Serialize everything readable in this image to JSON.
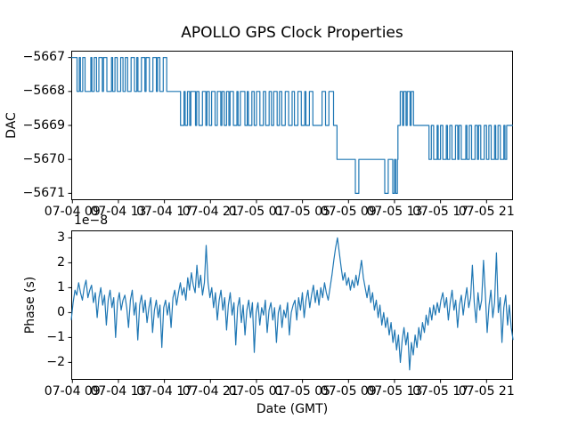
{
  "figure": {
    "title": "APOLLO GPS Clock Properties",
    "background": "#ffffff",
    "line_color": "#1f77b4",
    "axis_color": "#000000"
  },
  "axis_x": {
    "label": "Date (GMT)",
    "xlim_hours": [
      8.9,
      47.3
    ],
    "tick_values_hours": [
      9,
      13,
      17,
      21,
      25,
      29,
      33,
      37,
      41,
      45
    ],
    "tick_labels": [
      "07-04 09",
      "07-04 13",
      "07-04 17",
      "07-04 21",
      "07-05 01",
      "07-05 05",
      "07-05 09",
      "07-05 13",
      "07-05 17",
      "07-05 21"
    ]
  },
  "chart_data": [
    {
      "type": "line",
      "name": "dac",
      "ylabel": "DAC",
      "style": "step-post",
      "grid": false,
      "legend": "none",
      "ylim": [
        -5671.2,
        -5666.8
      ],
      "yticks": [
        -5667,
        -5668,
        -5669,
        -5670,
        -5671
      ],
      "points": [
        [
          8.9,
          -5667
        ],
        [
          9.4,
          -5668
        ],
        [
          9.6,
          -5667
        ],
        [
          9.7,
          -5668
        ],
        [
          9.9,
          -5667
        ],
        [
          10.1,
          -5668
        ],
        [
          10.6,
          -5667
        ],
        [
          10.7,
          -5668
        ],
        [
          10.9,
          -5667
        ],
        [
          11.1,
          -5668
        ],
        [
          11.3,
          -5667
        ],
        [
          11.6,
          -5668
        ],
        [
          11.7,
          -5667
        ],
        [
          12.0,
          -5668
        ],
        [
          12.4,
          -5667
        ],
        [
          12.5,
          -5668
        ],
        [
          12.7,
          -5667
        ],
        [
          12.9,
          -5668
        ],
        [
          13.2,
          -5667
        ],
        [
          13.4,
          -5668
        ],
        [
          13.6,
          -5667
        ],
        [
          13.8,
          -5668
        ],
        [
          14.1,
          -5667
        ],
        [
          14.4,
          -5668
        ],
        [
          14.6,
          -5667
        ],
        [
          14.7,
          -5668
        ],
        [
          15.0,
          -5667
        ],
        [
          15.3,
          -5668
        ],
        [
          15.4,
          -5667
        ],
        [
          15.7,
          -5668
        ],
        [
          16.0,
          -5667
        ],
        [
          16.3,
          -5668
        ],
        [
          16.4,
          -5667
        ],
        [
          16.6,
          -5668
        ],
        [
          16.9,
          -5667
        ],
        [
          17.2,
          -5668
        ],
        [
          18.4,
          -5669
        ],
        [
          18.7,
          -5668
        ],
        [
          18.8,
          -5669
        ],
        [
          19.0,
          -5668
        ],
        [
          19.2,
          -5669
        ],
        [
          19.3,
          -5668
        ],
        [
          19.7,
          -5669
        ],
        [
          19.8,
          -5668
        ],
        [
          20.0,
          -5669
        ],
        [
          20.3,
          -5668
        ],
        [
          20.6,
          -5669
        ],
        [
          20.7,
          -5668
        ],
        [
          20.9,
          -5669
        ],
        [
          21.1,
          -5668
        ],
        [
          21.4,
          -5669
        ],
        [
          21.6,
          -5668
        ],
        [
          21.9,
          -5669
        ],
        [
          22.0,
          -5668
        ],
        [
          22.2,
          -5669
        ],
        [
          22.4,
          -5668
        ],
        [
          22.6,
          -5669
        ],
        [
          22.7,
          -5668
        ],
        [
          23.0,
          -5669
        ],
        [
          23.3,
          -5668
        ],
        [
          23.4,
          -5669
        ],
        [
          23.6,
          -5668
        ],
        [
          24.0,
          -5669
        ],
        [
          24.2,
          -5668
        ],
        [
          24.3,
          -5669
        ],
        [
          24.6,
          -5668
        ],
        [
          24.8,
          -5669
        ],
        [
          25.0,
          -5668
        ],
        [
          25.3,
          -5669
        ],
        [
          25.6,
          -5668
        ],
        [
          25.8,
          -5669
        ],
        [
          26.1,
          -5668
        ],
        [
          26.3,
          -5669
        ],
        [
          26.5,
          -5668
        ],
        [
          26.8,
          -5669
        ],
        [
          27.0,
          -5668
        ],
        [
          27.2,
          -5669
        ],
        [
          27.5,
          -5668
        ],
        [
          27.8,
          -5669
        ],
        [
          28.1,
          -5668
        ],
        [
          28.3,
          -5669
        ],
        [
          28.6,
          -5668
        ],
        [
          28.9,
          -5669
        ],
        [
          29.2,
          -5668
        ],
        [
          29.3,
          -5669
        ],
        [
          29.6,
          -5668
        ],
        [
          29.9,
          -5669
        ],
        [
          30.7,
          -5668
        ],
        [
          31.0,
          -5669
        ],
        [
          31.3,
          -5668
        ],
        [
          31.7,
          -5669
        ],
        [
          32.0,
          -5670
        ],
        [
          33.6,
          -5671
        ],
        [
          33.9,
          -5670
        ],
        [
          36.15,
          -5671
        ],
        [
          36.45,
          -5670
        ],
        [
          36.85,
          -5671
        ],
        [
          37.0,
          -5670
        ],
        [
          37.1,
          -5671
        ],
        [
          37.25,
          -5670
        ],
        [
          37.3,
          -5669
        ],
        [
          37.5,
          -5668
        ],
        [
          37.7,
          -5669
        ],
        [
          37.8,
          -5668
        ],
        [
          38.0,
          -5669
        ],
        [
          38.1,
          -5668
        ],
        [
          38.35,
          -5669
        ],
        [
          38.45,
          -5668
        ],
        [
          38.65,
          -5669
        ],
        [
          40.0,
          -5670
        ],
        [
          40.2,
          -5669
        ],
        [
          40.4,
          -5670
        ],
        [
          40.7,
          -5669
        ],
        [
          40.8,
          -5670
        ],
        [
          41.0,
          -5669
        ],
        [
          41.2,
          -5670
        ],
        [
          41.5,
          -5669
        ],
        [
          41.6,
          -5670
        ],
        [
          41.8,
          -5669
        ],
        [
          42.0,
          -5670
        ],
        [
          42.3,
          -5669
        ],
        [
          42.5,
          -5670
        ],
        [
          42.6,
          -5669
        ],
        [
          42.8,
          -5670
        ],
        [
          43.2,
          -5669
        ],
        [
          43.3,
          -5670
        ],
        [
          43.5,
          -5669
        ],
        [
          43.7,
          -5670
        ],
        [
          44.0,
          -5669
        ],
        [
          44.2,
          -5670
        ],
        [
          44.3,
          -5669
        ],
        [
          44.5,
          -5670
        ],
        [
          44.8,
          -5669
        ],
        [
          45.0,
          -5670
        ],
        [
          45.2,
          -5669
        ],
        [
          45.4,
          -5670
        ],
        [
          45.7,
          -5669
        ],
        [
          45.8,
          -5670
        ],
        [
          46.0,
          -5669
        ],
        [
          46.2,
          -5670
        ],
        [
          46.5,
          -5669
        ],
        [
          46.6,
          -5670
        ],
        [
          46.75,
          -5669
        ],
        [
          47.3,
          -5669
        ]
      ]
    },
    {
      "type": "line",
      "name": "phase",
      "ylabel": "Phase (s)",
      "offset_text": "1e−8",
      "grid": false,
      "legend": "none",
      "ylim": [
        -2.7,
        3.3
      ],
      "yticks": [
        3,
        2,
        1,
        0,
        -1,
        -2
      ],
      "x_start_hours": 8.9,
      "x_step_hours": 0.1607,
      "values_1e8": [
        -0.3,
        0.4,
        0.9,
        0.7,
        1.2,
        0.8,
        0.5,
        1.0,
        1.3,
        0.6,
        0.9,
        1.1,
        0.4,
        0.8,
        -0.2,
        0.6,
        1.0,
        0.3,
        0.7,
        -0.5,
        0.5,
        0.9,
        0.2,
        0.6,
        -1.0,
        0.4,
        0.8,
        0.1,
        0.5,
        0.7,
        0.2,
        -0.6,
        0.5,
        0.9,
        -0.1,
        0.4,
        -1.1,
        0.3,
        0.7,
        0.0,
        0.5,
        -0.4,
        0.2,
        0.6,
        -0.8,
        0.1,
        0.5,
        -0.2,
        0.3,
        -1.4,
        0.2,
        0.5,
        -0.1,
        0.4,
        -0.6,
        0.6,
        0.9,
        0.3,
        0.8,
        1.2,
        0.7,
        1.0,
        0.5,
        1.4,
        0.9,
        1.6,
        1.1,
        0.8,
        1.9,
        1.0,
        1.5,
        0.7,
        1.2,
        2.7,
        1.2,
        0.6,
        1.0,
        0.2,
        0.8,
        -0.3,
        0.5,
        0.9,
        0.1,
        0.6,
        -0.7,
        0.3,
        0.8,
        -0.1,
        0.4,
        -1.3,
        0.2,
        0.6,
        -0.4,
        0.3,
        -0.9,
        0.1,
        0.5,
        -0.2,
        0.4,
        -1.6,
        0.0,
        0.4,
        -0.5,
        0.2,
        -0.1,
        0.5,
        -0.8,
        0.1,
        0.4,
        -0.3,
        0.2,
        -1.2,
        0.0,
        0.3,
        -0.6,
        0.1,
        -0.2,
        0.4,
        -0.9,
        0.0,
        0.3,
        0.5,
        -0.3,
        0.6,
        0.1,
        0.8,
        -0.2,
        0.5,
        0.9,
        0.2,
        0.7,
        1.1,
        0.4,
        0.9,
        0.3,
        1.0,
        0.6,
        1.2,
        0.8,
        0.5,
        1.0,
        1.5,
        2.1,
        2.6,
        3.0,
        2.4,
        1.8,
        1.3,
        1.6,
        1.1,
        1.4,
        0.9,
        1.3,
        1.0,
        1.5,
        1.1,
        1.6,
        2.1,
        1.4,
        1.0,
        0.6,
        1.1,
        0.4,
        0.8,
        0.1,
        0.5,
        -0.2,
        0.3,
        -0.5,
        0.0,
        -0.6,
        -0.2,
        -0.9,
        -0.4,
        -1.2,
        -0.7,
        -1.5,
        -0.9,
        -2.0,
        -1.1,
        -0.6,
        -1.3,
        -0.8,
        -2.3,
        -1.2,
        -1.7,
        -0.9,
        -1.4,
        -0.6,
        -1.1,
        -0.4,
        -0.8,
        -0.1,
        -0.5,
        0.2,
        -0.3,
        0.3,
        -0.1,
        0.4,
        0.0,
        0.5,
        0.8,
        0.2,
        0.6,
        -0.3,
        0.4,
        0.9,
        0.1,
        0.5,
        -0.6,
        0.3,
        0.7,
        -0.1,
        0.5,
        1.0,
        0.2,
        0.6,
        1.9,
        0.4,
        -0.4,
        0.8,
        0.1,
        0.5,
        2.1,
        0.7,
        -0.8,
        0.3,
        0.9,
        -0.2,
        0.4,
        2.4,
        0.0,
        0.6,
        -1.2,
        0.2,
        0.7,
        -0.5,
        0.3,
        -0.6,
        -1.1
      ]
    }
  ]
}
